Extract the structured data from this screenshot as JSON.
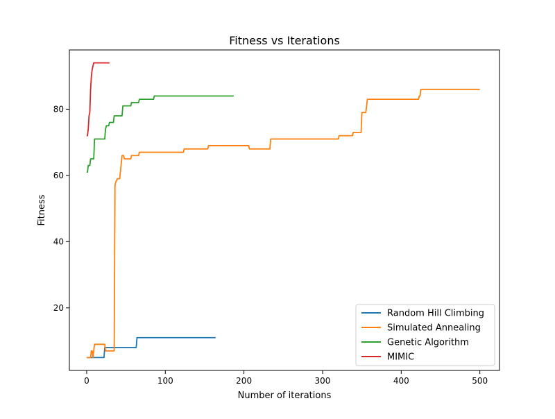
{
  "chart_data": {
    "type": "line",
    "title": "Fitness vs Iterations",
    "xlabel": "Number of iterations",
    "ylabel": "Fitness",
    "xlim": [
      -22,
      525
    ],
    "ylim": [
      1.1,
      97.9
    ],
    "xticks": [
      0,
      100,
      200,
      300,
      400,
      500
    ],
    "yticks": [
      20,
      40,
      60,
      80
    ],
    "grid": false,
    "legend_position": "lower right",
    "series": [
      {
        "name": "Random Hill Climbing",
        "color": "#1f77b4",
        "points": [
          [
            0,
            5
          ],
          [
            22,
            5
          ],
          [
            23,
            8
          ],
          [
            63,
            8
          ],
          [
            64,
            11
          ],
          [
            164,
            11
          ]
        ]
      },
      {
        "name": "Simulated Annealing",
        "color": "#ff7f0e",
        "points": [
          [
            0,
            5
          ],
          [
            5,
            5
          ],
          [
            6,
            7
          ],
          [
            7,
            7
          ],
          [
            8,
            5
          ],
          [
            9,
            7
          ],
          [
            10,
            9
          ],
          [
            23,
            9
          ],
          [
            24,
            7
          ],
          [
            35,
            7
          ],
          [
            36,
            57
          ],
          [
            37,
            58
          ],
          [
            39,
            59
          ],
          [
            42,
            59
          ],
          [
            45,
            66
          ],
          [
            47,
            66
          ],
          [
            48,
            65
          ],
          [
            56,
            65
          ],
          [
            57,
            66
          ],
          [
            66,
            66
          ],
          [
            67,
            67
          ],
          [
            123,
            67
          ],
          [
            124,
            68
          ],
          [
            154,
            68
          ],
          [
            155,
            69
          ],
          [
            206,
            69
          ],
          [
            207,
            68
          ],
          [
            233,
            68
          ],
          [
            234,
            71
          ],
          [
            320,
            71
          ],
          [
            321,
            72
          ],
          [
            338,
            72
          ],
          [
            339,
            73
          ],
          [
            349,
            73
          ],
          [
            350,
            79
          ],
          [
            355,
            79
          ],
          [
            357,
            83
          ],
          [
            422,
            83
          ],
          [
            423,
            84
          ],
          [
            424,
            84
          ],
          [
            425,
            86
          ],
          [
            500,
            86
          ]
        ]
      },
      {
        "name": "Genetic Algorithm",
        "color": "#2ca02c",
        "points": [
          [
            0,
            61
          ],
          [
            1,
            61
          ],
          [
            2,
            63
          ],
          [
            4,
            63
          ],
          [
            5,
            65
          ],
          [
            9,
            65
          ],
          [
            10,
            71
          ],
          [
            23,
            71
          ],
          [
            24,
            74
          ],
          [
            25,
            75
          ],
          [
            28,
            75
          ],
          [
            29,
            76
          ],
          [
            34,
            76
          ],
          [
            35,
            78
          ],
          [
            45,
            78
          ],
          [
            46,
            81
          ],
          [
            56,
            81
          ],
          [
            57,
            82
          ],
          [
            66,
            82
          ],
          [
            67,
            83
          ],
          [
            85,
            83
          ],
          [
            86,
            84
          ],
          [
            187,
            84
          ]
        ]
      },
      {
        "name": "MIMIC",
        "color": "#d62728",
        "points": [
          [
            0,
            72
          ],
          [
            1,
            72
          ],
          [
            2,
            74
          ],
          [
            3,
            78
          ],
          [
            4,
            79
          ],
          [
            5,
            86
          ],
          [
            6,
            90
          ],
          [
            7,
            92
          ],
          [
            8,
            93
          ],
          [
            9,
            94
          ],
          [
            29,
            94
          ]
        ]
      }
    ]
  }
}
